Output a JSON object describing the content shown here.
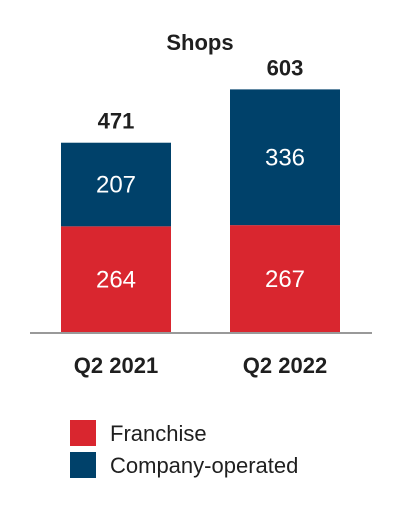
{
  "chart_data": {
    "type": "bar",
    "stacked": true,
    "title": "Shops",
    "categories": [
      "Q2 2021",
      "Q2 2022"
    ],
    "series": [
      {
        "name": "Franchise",
        "values": [
          264,
          267
        ],
        "color": "#d9262f"
      },
      {
        "name": "Company-operated",
        "values": [
          207,
          336
        ],
        "color": "#00416a"
      }
    ],
    "totals": [
      471,
      603
    ],
    "ylim": [
      0,
      750
    ],
    "grid": false,
    "legend": "bottom",
    "axis_color": "#999999"
  }
}
